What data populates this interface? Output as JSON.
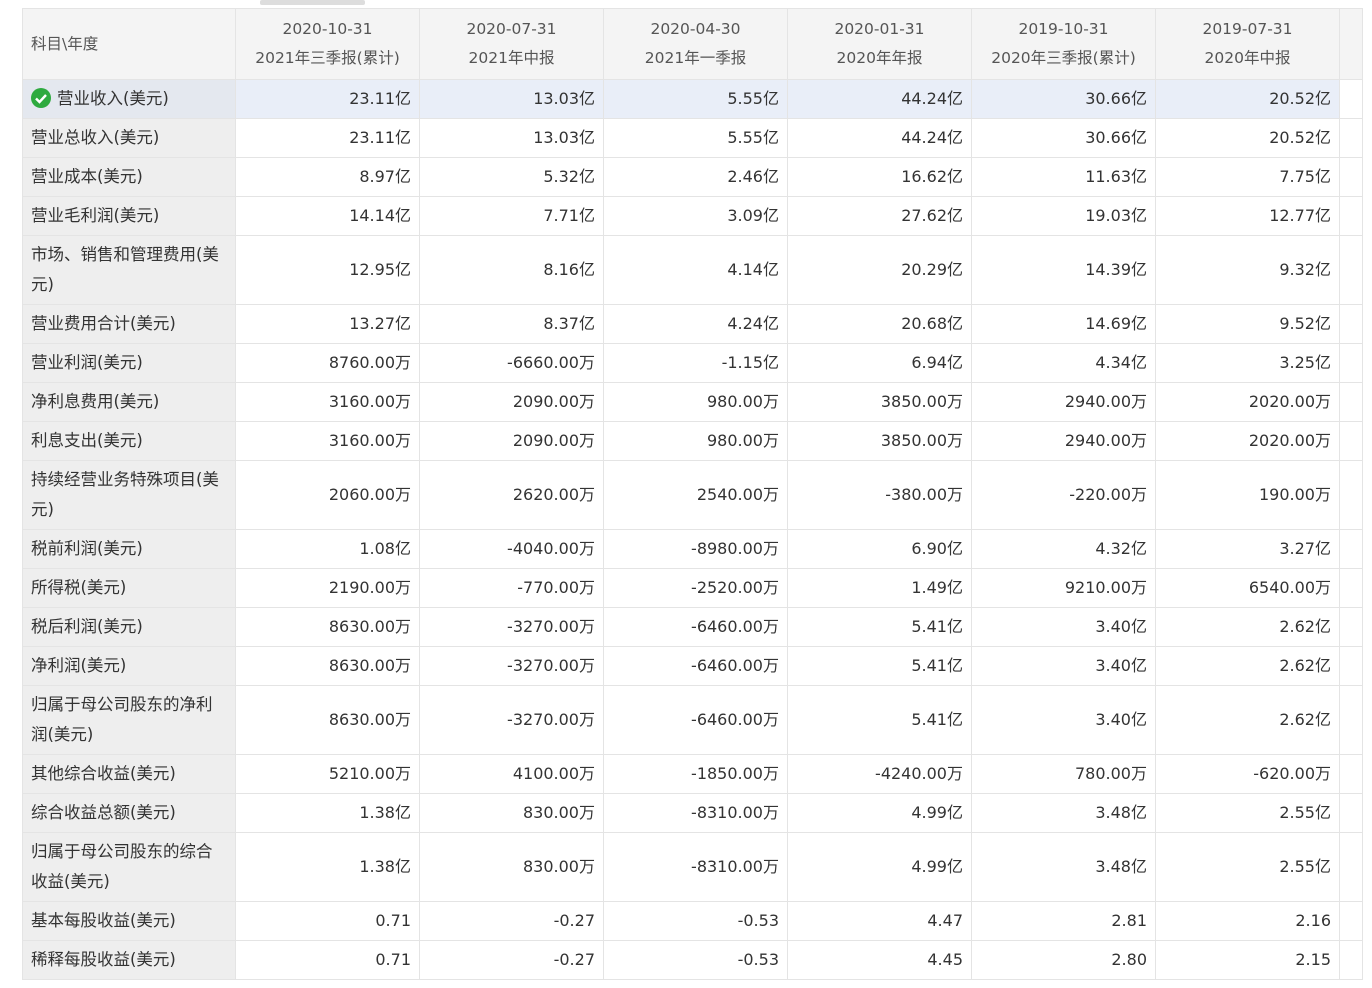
{
  "table": {
    "corner": "科目\\年度",
    "columns": [
      {
        "date": "2020-10-31",
        "period": "2021年三季报(累计)"
      },
      {
        "date": "2020-07-31",
        "period": "2021年中报"
      },
      {
        "date": "2020-04-30",
        "period": "2021年一季报"
      },
      {
        "date": "2020-01-31",
        "period": "2020年年报"
      },
      {
        "date": "2019-10-31",
        "period": "2020年三季报(累计)"
      },
      {
        "date": "2019-07-31",
        "period": "2020年中报"
      }
    ],
    "rows": [
      {
        "label": "营业收入(美元)",
        "values": [
          "23.11亿",
          "13.03亿",
          "5.55亿",
          "44.24亿",
          "30.66亿",
          "20.52亿"
        ]
      },
      {
        "label": "营业总收入(美元)",
        "values": [
          "23.11亿",
          "13.03亿",
          "5.55亿",
          "44.24亿",
          "30.66亿",
          "20.52亿"
        ]
      },
      {
        "label": "营业成本(美元)",
        "values": [
          "8.97亿",
          "5.32亿",
          "2.46亿",
          "16.62亿",
          "11.63亿",
          "7.75亿"
        ]
      },
      {
        "label": "营业毛利润(美元)",
        "values": [
          "14.14亿",
          "7.71亿",
          "3.09亿",
          "27.62亿",
          "19.03亿",
          "12.77亿"
        ]
      },
      {
        "label": "市场、销售和管理费用(美元)",
        "values": [
          "12.95亿",
          "8.16亿",
          "4.14亿",
          "20.29亿",
          "14.39亿",
          "9.32亿"
        ]
      },
      {
        "label": "营业费用合计(美元)",
        "values": [
          "13.27亿",
          "8.37亿",
          "4.24亿",
          "20.68亿",
          "14.69亿",
          "9.52亿"
        ]
      },
      {
        "label": "营业利润(美元)",
        "values": [
          "8760.00万",
          "-6660.00万",
          "-1.15亿",
          "6.94亿",
          "4.34亿",
          "3.25亿"
        ]
      },
      {
        "label": "净利息费用(美元)",
        "values": [
          "3160.00万",
          "2090.00万",
          "980.00万",
          "3850.00万",
          "2940.00万",
          "2020.00万"
        ]
      },
      {
        "label": "利息支出(美元)",
        "values": [
          "3160.00万",
          "2090.00万",
          "980.00万",
          "3850.00万",
          "2940.00万",
          "2020.00万"
        ]
      },
      {
        "label": "持续经营业务特殊项目(美元)",
        "values": [
          "2060.00万",
          "2620.00万",
          "2540.00万",
          "-380.00万",
          "-220.00万",
          "190.00万"
        ]
      },
      {
        "label": "税前利润(美元)",
        "values": [
          "1.08亿",
          "-4040.00万",
          "-8980.00万",
          "6.90亿",
          "4.32亿",
          "3.27亿"
        ]
      },
      {
        "label": "所得税(美元)",
        "values": [
          "2190.00万",
          "-770.00万",
          "-2520.00万",
          "1.49亿",
          "9210.00万",
          "6540.00万"
        ]
      },
      {
        "label": "税后利润(美元)",
        "values": [
          "8630.00万",
          "-3270.00万",
          "-6460.00万",
          "5.41亿",
          "3.40亿",
          "2.62亿"
        ]
      },
      {
        "label": "净利润(美元)",
        "values": [
          "8630.00万",
          "-3270.00万",
          "-6460.00万",
          "5.41亿",
          "3.40亿",
          "2.62亿"
        ]
      },
      {
        "label": "归属于母公司股东的净利润(美元)",
        "values": [
          "8630.00万",
          "-3270.00万",
          "-6460.00万",
          "5.41亿",
          "3.40亿",
          "2.62亿"
        ]
      },
      {
        "label": "其他综合收益(美元)",
        "values": [
          "5210.00万",
          "4100.00万",
          "-1850.00万",
          "-4240.00万",
          "780.00万",
          "-620.00万"
        ]
      },
      {
        "label": "综合收益总额(美元)",
        "values": [
          "1.38亿",
          "830.00万",
          "-8310.00万",
          "4.99亿",
          "3.48亿",
          "2.55亿"
        ]
      },
      {
        "label": "归属于母公司股东的综合收益(美元)",
        "values": [
          "1.38亿",
          "830.00万",
          "-8310.00万",
          "4.99亿",
          "3.48亿",
          "2.55亿"
        ]
      },
      {
        "label": "基本每股收益(美元)",
        "values": [
          "0.71",
          "-0.27",
          "-0.53",
          "4.47",
          "2.81",
          "2.16"
        ]
      },
      {
        "label": "稀释每股收益(美元)",
        "values": [
          "0.71",
          "-0.27",
          "-0.53",
          "4.45",
          "2.80",
          "2.15"
        ]
      }
    ]
  }
}
